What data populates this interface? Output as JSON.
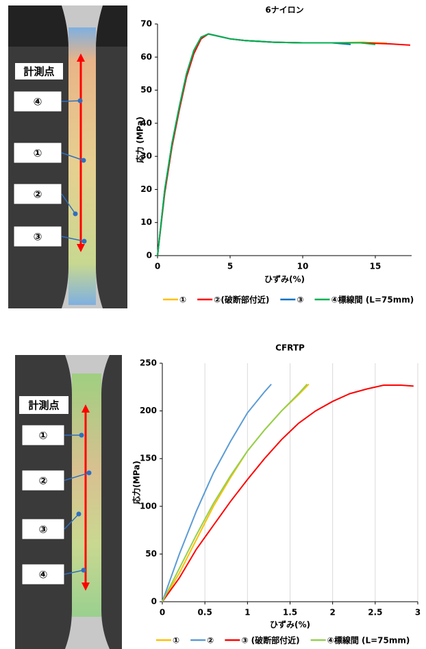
{
  "photos": [
    {
      "heading": "計測点",
      "markers": [
        "④",
        "①",
        "②",
        "③"
      ]
    },
    {
      "heading": "計測点",
      "markers": [
        "①",
        "②",
        "③",
        "④"
      ]
    }
  ],
  "chart_data": [
    {
      "type": "line",
      "title": "6ナイロン",
      "x_label": "ひずみ(%)",
      "y_label": "応力 (MPa)",
      "xlim": [
        0,
        17.5
      ],
      "xticks": [
        0,
        5,
        10,
        15
      ],
      "ylim": [
        0,
        70
      ],
      "yticks": [
        0,
        10,
        20,
        30,
        40,
        50,
        60,
        70
      ],
      "grid": false,
      "series": [
        {
          "name": "①",
          "color": "#ffc000",
          "x": [
            0,
            0.5,
            1,
            1.5,
            2,
            2.5,
            3,
            3.5,
            4,
            5,
            6,
            8,
            10,
            12,
            14,
            15.8
          ],
          "values": [
            0,
            20,
            34,
            45,
            55,
            62,
            66,
            67,
            66.5,
            65.5,
            65,
            64.5,
            64.3,
            64.3,
            64.5,
            64.2
          ]
        },
        {
          "name": "②(破断部付近)",
          "color": "#ff0000",
          "x": [
            0,
            0.5,
            1,
            1.5,
            2,
            2.5,
            3,
            3.5,
            4,
            5,
            6,
            8,
            10,
            12,
            14,
            16,
            17.4
          ],
          "values": [
            0,
            19,
            33,
            44,
            54,
            61,
            65.5,
            67,
            66.5,
            65.5,
            65,
            64.5,
            64.3,
            64.3,
            64.3,
            64,
            63.6
          ]
        },
        {
          "name": "③",
          "color": "#0070c0",
          "x": [
            0,
            0.5,
            1,
            1.5,
            2,
            2.5,
            3,
            3.5,
            4,
            5,
            6,
            8,
            10,
            12,
            13.3
          ],
          "values": [
            0,
            20,
            34,
            45,
            55,
            62,
            66,
            67,
            66.5,
            65.5,
            65,
            64.5,
            64.3,
            64.3,
            63.8
          ]
        },
        {
          "name": "④標線間 (L=75mm)",
          "color": "#00b050",
          "x": [
            0,
            0.5,
            1,
            1.5,
            2,
            2.5,
            3,
            3.5,
            4,
            5,
            6,
            8,
            10,
            12,
            14,
            15
          ],
          "values": [
            0,
            20,
            34,
            45,
            55,
            62,
            66,
            67,
            66.5,
            65.5,
            65,
            64.5,
            64.3,
            64.3,
            64.3,
            63.8
          ]
        }
      ]
    },
    {
      "type": "line",
      "title": "CFRTP",
      "x_label": "ひずみ(%)",
      "y_label": "応力(MPa)",
      "xlim": [
        0,
        3
      ],
      "xticks": [
        0,
        0.5,
        1,
        1.5,
        2,
        2.5,
        3
      ],
      "ylim": [
        0,
        250
      ],
      "yticks": [
        0,
        50,
        100,
        150,
        200,
        250
      ],
      "grid": true,
      "series": [
        {
          "name": "①",
          "color": "#ffc000",
          "x": [
            0,
            0.2,
            0.4,
            0.6,
            0.8,
            1.0,
            1.2,
            1.4,
            1.6,
            1.72
          ],
          "values": [
            0,
            30,
            65,
            100,
            130,
            158,
            180,
            200,
            217,
            228
          ]
        },
        {
          "name": "②",
          "color": "#5b9bd5",
          "x": [
            0,
            0.1,
            0.2,
            0.4,
            0.6,
            0.8,
            1.0,
            1.2,
            1.28
          ],
          "values": [
            0,
            25,
            50,
            95,
            135,
            168,
            198,
            220,
            228
          ]
        },
        {
          "name": "③ (破断部付近)",
          "color": "#ff0000",
          "x": [
            0,
            0.2,
            0.4,
            0.6,
            0.8,
            1.0,
            1.2,
            1.4,
            1.6,
            1.8,
            2.0,
            2.2,
            2.4,
            2.6,
            2.8,
            2.95
          ],
          "values": [
            0,
            25,
            55,
            80,
            105,
            128,
            150,
            170,
            187,
            200,
            210,
            218,
            223,
            227,
            227,
            226
          ]
        },
        {
          "name": "④標線間 (L=75mm)",
          "color": "#92d050",
          "x": [
            0,
            0.2,
            0.4,
            0.6,
            0.8,
            1.0,
            1.2,
            1.4,
            1.6,
            1.7
          ],
          "values": [
            0,
            35,
            70,
            103,
            132,
            158,
            180,
            200,
            218,
            228
          ]
        }
      ]
    }
  ]
}
